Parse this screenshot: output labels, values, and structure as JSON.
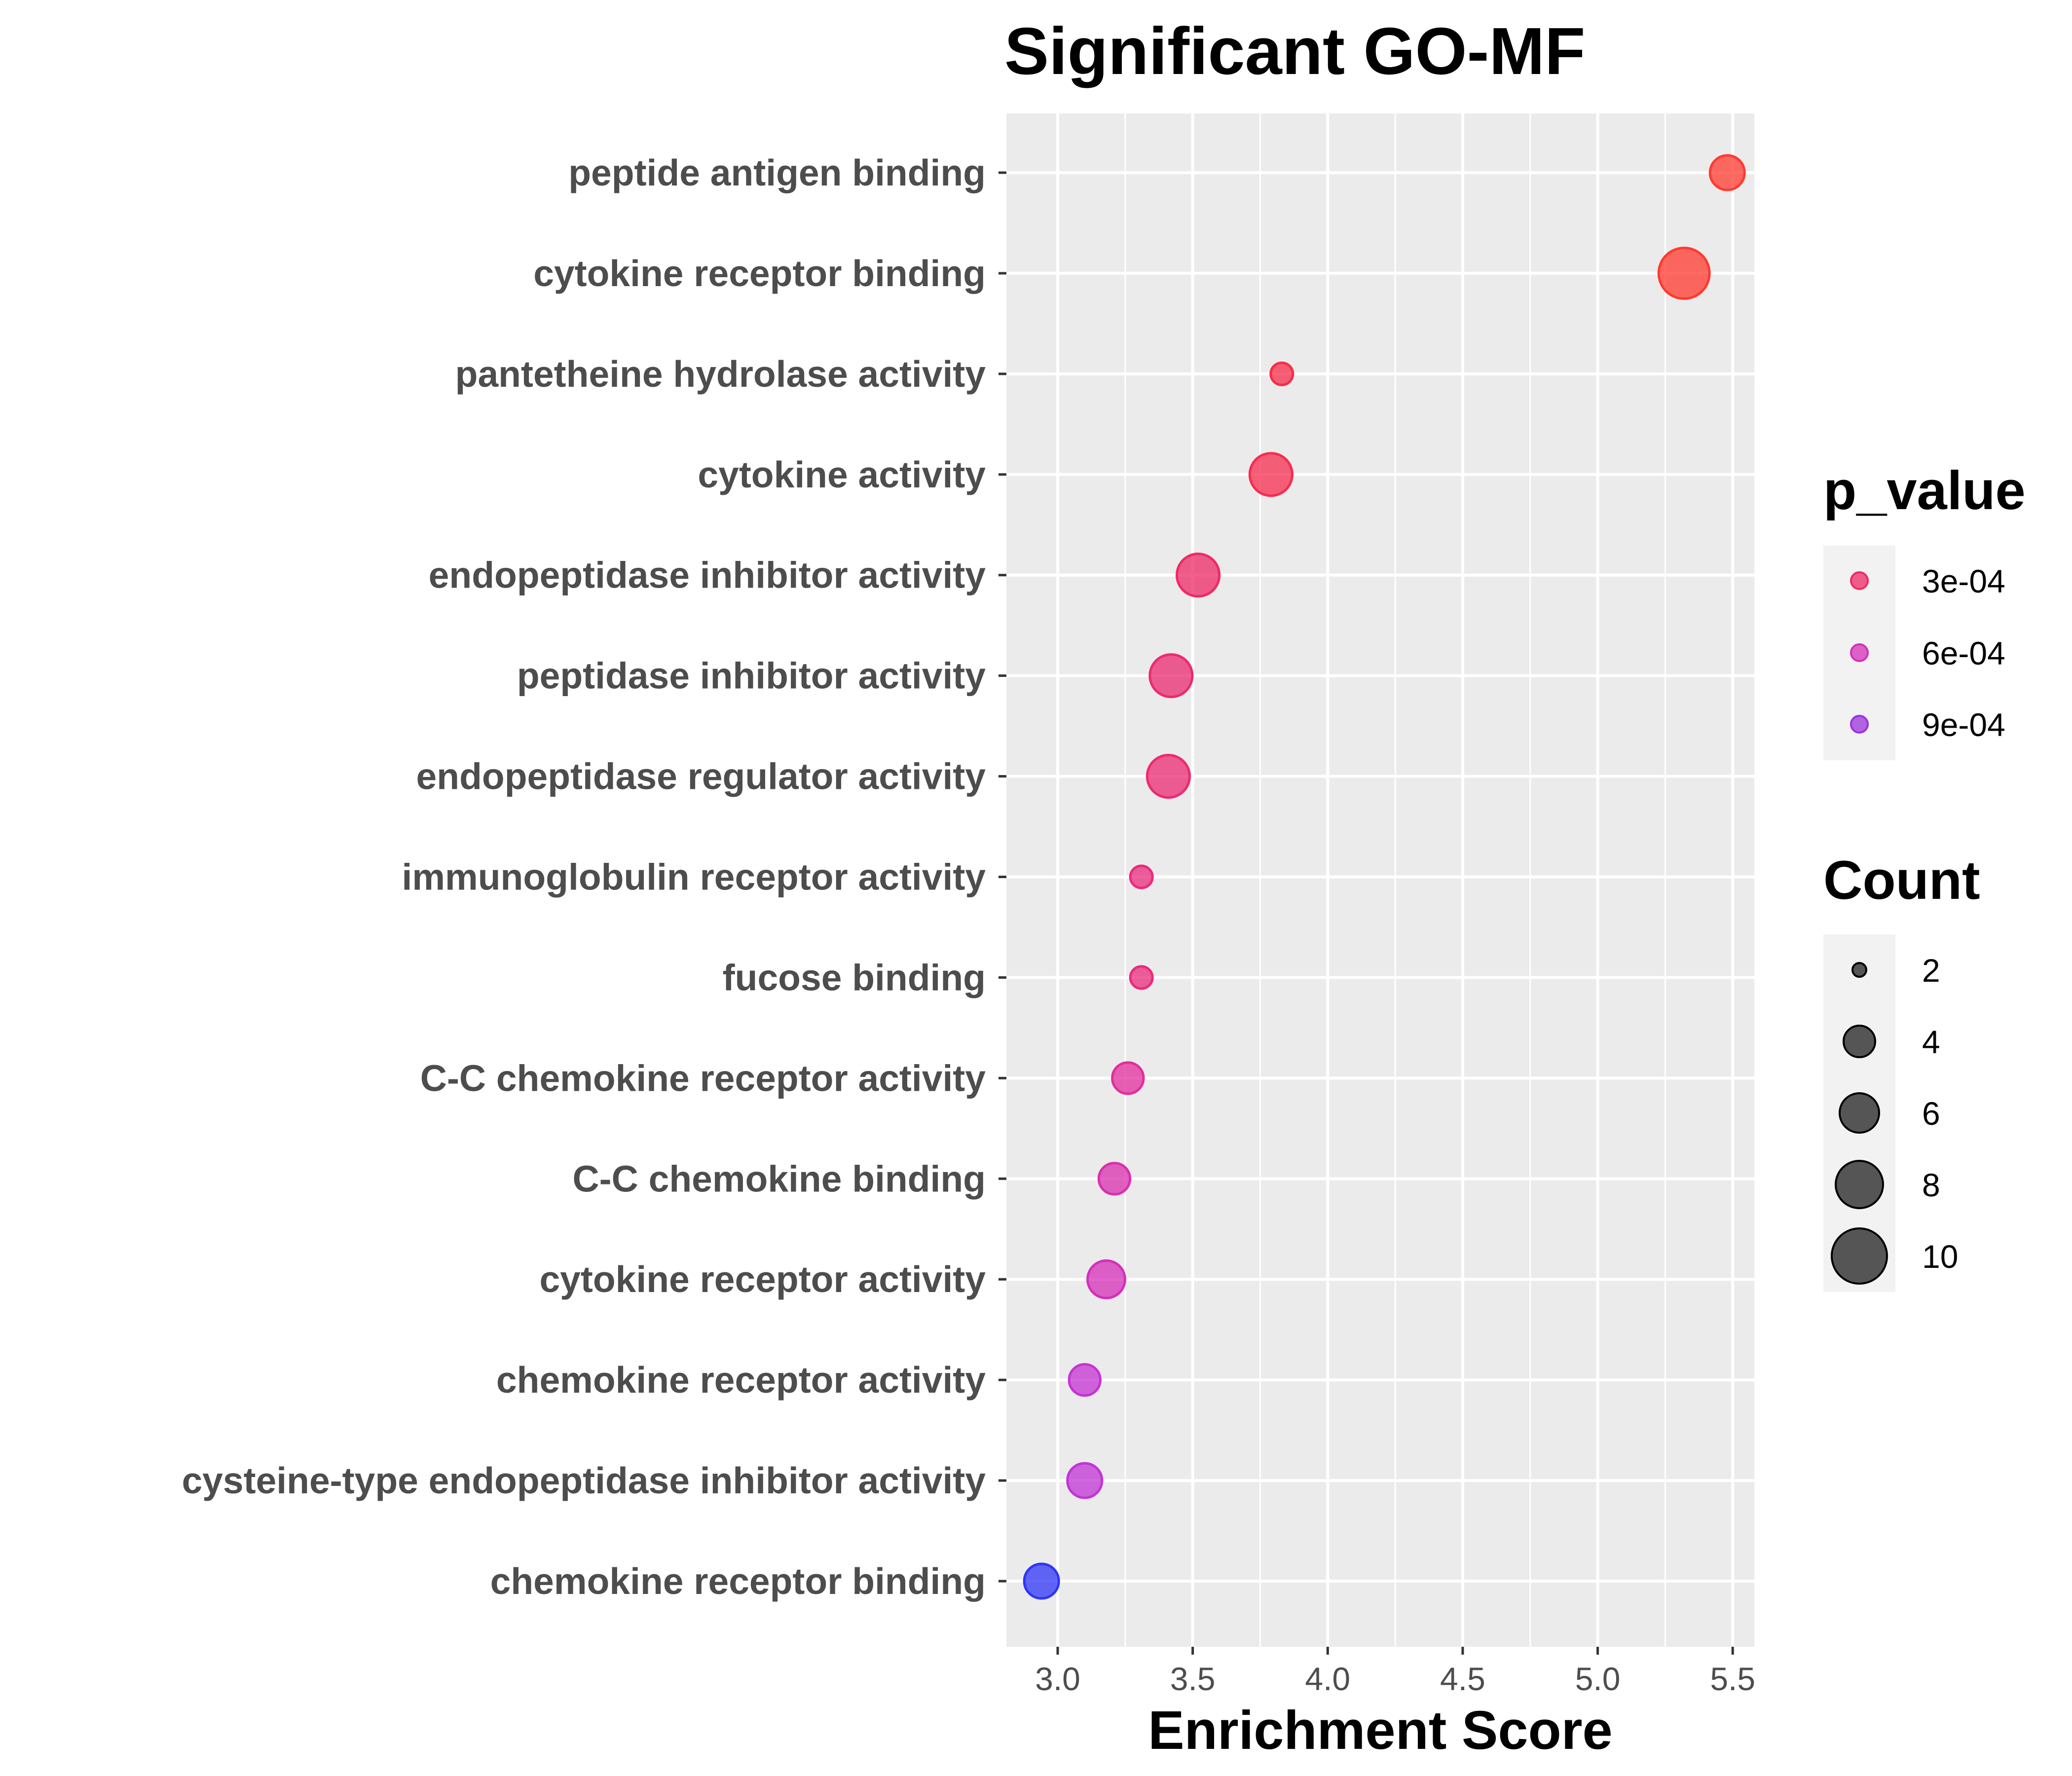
{
  "chart_data": {
    "type": "scatter",
    "title": "Significant GO-MF",
    "xlabel": "Enrichment Score",
    "ylabel": "",
    "xlim": [
      2.81,
      5.58
    ],
    "xticks": [
      3.0,
      3.5,
      4.0,
      4.5,
      5.0,
      5.5
    ],
    "xtick_labels": [
      "3.0",
      "3.5",
      "4.0",
      "4.5",
      "5.0",
      "5.5"
    ],
    "grid": true,
    "legend_position": "right",
    "categories": [
      "peptide antigen binding",
      "cytokine receptor binding",
      "pantetheine hydrolase activity",
      "cytokine activity",
      "endopeptidase inhibitor activity",
      "peptidase inhibitor activity",
      "endopeptidase regulator activity",
      "immunoglobulin receptor activity",
      "fucose binding",
      "C-C chemokine receptor activity",
      "C-C chemokine binding",
      "cytokine receptor activity",
      "chemokine receptor activity",
      "cysteine-type endopeptidase inhibitor activity",
      "chemokine receptor binding"
    ],
    "points": [
      {
        "term": "peptide antigen binding",
        "x": 5.48,
        "count": 4,
        "p_value": 1e-05,
        "color": "#ff3b30"
      },
      {
        "term": "cytokine receptor binding",
        "x": 5.32,
        "count": 11,
        "p_value": 1e-06,
        "color": "#ff3a2e"
      },
      {
        "term": "pantetheine hydrolase activity",
        "x": 3.83,
        "count": 1,
        "p_value": 0.00015,
        "color": "#f52e4a"
      },
      {
        "term": "cytokine activity",
        "x": 3.79,
        "count": 7,
        "p_value": 0.0001,
        "color": "#f52d4f"
      },
      {
        "term": "endopeptidase inhibitor activity",
        "x": 3.52,
        "count": 7,
        "p_value": 0.00028,
        "color": "#ee2a66"
      },
      {
        "term": "peptidase inhibitor activity",
        "x": 3.42,
        "count": 7,
        "p_value": 0.00035,
        "color": "#eb2a70"
      },
      {
        "term": "endopeptidase regulator activity",
        "x": 3.41,
        "count": 7,
        "p_value": 0.00036,
        "color": "#eb2a72"
      },
      {
        "term": "immunoglobulin receptor activity",
        "x": 3.31,
        "count": 1,
        "p_value": 0.0004,
        "color": "#ea2b7c"
      },
      {
        "term": "fucose binding",
        "x": 3.31,
        "count": 1,
        "p_value": 0.0004,
        "color": "#ea2b7c"
      },
      {
        "term": "C-C chemokine receptor activity",
        "x": 3.26,
        "count": 3,
        "p_value": 0.00048,
        "color": "#e12e9c"
      },
      {
        "term": "C-C chemokine binding",
        "x": 3.21,
        "count": 3,
        "p_value": 0.00052,
        "color": "#da2fae"
      },
      {
        "term": "cytokine receptor activity",
        "x": 3.18,
        "count": 5,
        "p_value": 0.00055,
        "color": "#d42fb8"
      },
      {
        "term": "chemokine receptor activity",
        "x": 3.1,
        "count": 3,
        "p_value": 0.00065,
        "color": "#c633d2"
      },
      {
        "term": "cysteine-type endopeptidase inhibitor activity",
        "x": 3.1,
        "count": 4,
        "p_value": 0.00068,
        "color": "#c234d6"
      },
      {
        "term": "chemokine receptor binding",
        "x": 2.94,
        "count": 4,
        "p_value": 0.0011,
        "color": "#2f35f5"
      }
    ],
    "legends": {
      "color": {
        "title": "p_value",
        "items": [
          {
            "label": "3e-04",
            "color": "#ee2a66"
          },
          {
            "label": "6e-04",
            "color": "#d430b7"
          },
          {
            "label": "9e-04",
            "color": "#9b33dc"
          }
        ]
      },
      "size": {
        "title": "Count",
        "items": [
          {
            "label": "2",
            "count": 2
          },
          {
            "label": "4",
            "count": 4
          },
          {
            "label": "6",
            "count": 6
          },
          {
            "label": "8",
            "count": 8
          },
          {
            "label": "10",
            "count": 10
          }
        ]
      }
    }
  }
}
